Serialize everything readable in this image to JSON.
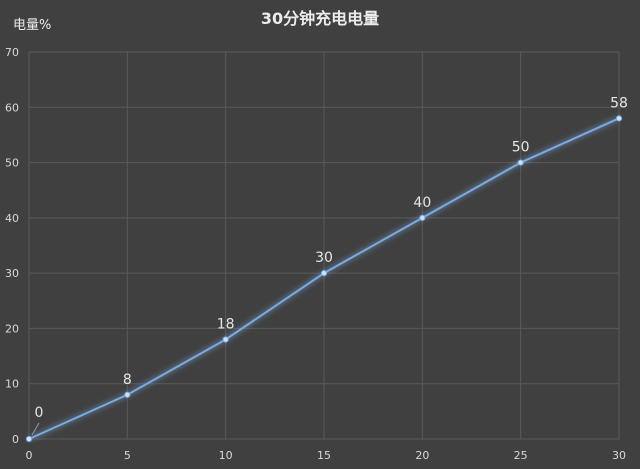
{
  "chart_data": {
    "type": "line",
    "title": "30分钟充电电量",
    "xlabel": "",
    "ylabel": "电量%",
    "x": [
      0,
      5,
      10,
      15,
      20,
      25,
      30
    ],
    "series": [
      {
        "values": [
          0,
          8,
          18,
          30,
          40,
          50,
          58
        ]
      }
    ],
    "data_labels": [
      "0",
      "8",
      "18",
      "30",
      "40",
      "50",
      "58"
    ],
    "xlim": [
      0,
      30
    ],
    "ylim": [
      0,
      70
    ],
    "x_ticks": [
      "0",
      "5",
      "10",
      "15",
      "20",
      "25",
      "30"
    ],
    "y_ticks": [
      "0",
      "10",
      "20",
      "30",
      "40",
      "50",
      "60",
      "70"
    ],
    "grid": true,
    "legend": "none",
    "colors": {
      "background": "#404040",
      "grid": "#5a5a5a",
      "line": "#7aaae2",
      "glow": "#4f8fe0"
    }
  }
}
